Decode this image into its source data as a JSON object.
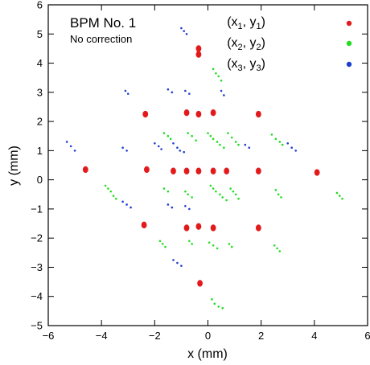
{
  "chart_data": {
    "type": "scatter",
    "title": "BPM No. 1",
    "subtitle": "No correction",
    "xlabel": "x (mm)",
    "ylabel": "y (mm)",
    "xlim": [
      -6,
      6
    ],
    "ylim": [
      -5,
      6
    ],
    "xticks": [
      -6,
      -4,
      -2,
      0,
      2,
      4,
      6
    ],
    "yticks": [
      -5,
      -4,
      -3,
      -2,
      -1,
      0,
      1,
      2,
      3,
      4,
      5,
      6
    ],
    "grid": false,
    "legend_position": "top-right",
    "legend_labels": {
      "s1": {
        "base": "(x",
        "sub1": "1",
        "mid": ", y",
        "sub2": "1",
        "end": ")"
      },
      "s2": {
        "base": "(x",
        "sub1": "2",
        "mid": ", y",
        "sub2": "2",
        "end": ")"
      },
      "s3": {
        "base": "(x",
        "sub1": "3",
        "mid": ", y",
        "sub2": "3",
        "end": ")"
      }
    },
    "series": [
      {
        "key": "s1",
        "color": "#e31a1c",
        "marker": "dot-large",
        "points": [
          [
            -0.35,
            4.5
          ],
          [
            -0.35,
            4.3
          ],
          [
            -2.35,
            2.25
          ],
          [
            -0.8,
            2.3
          ],
          [
            -0.35,
            2.25
          ],
          [
            0.2,
            2.3
          ],
          [
            1.9,
            2.25
          ],
          [
            -4.6,
            0.35
          ],
          [
            -2.3,
            0.35
          ],
          [
            -1.3,
            0.3
          ],
          [
            -0.8,
            0.3
          ],
          [
            -0.35,
            0.3
          ],
          [
            0.2,
            0.3
          ],
          [
            0.7,
            0.3
          ],
          [
            1.9,
            0.3
          ],
          [
            4.1,
            0.25
          ],
          [
            -2.4,
            -1.55
          ],
          [
            -0.8,
            -1.65
          ],
          [
            -0.35,
            -1.6
          ],
          [
            0.2,
            -1.65
          ],
          [
            1.9,
            -1.65
          ],
          [
            -0.3,
            -3.55
          ]
        ]
      },
      {
        "key": "s2",
        "color": "#22dd22",
        "marker": "dot-small",
        "points": [
          [
            0.2,
            3.8
          ],
          [
            0.3,
            3.65
          ],
          [
            0.4,
            3.55
          ],
          [
            0.5,
            3.4
          ],
          [
            -1.65,
            1.6
          ],
          [
            -1.5,
            1.5
          ],
          [
            -1.4,
            1.4
          ],
          [
            -0.75,
            1.6
          ],
          [
            -0.6,
            1.5
          ],
          [
            -0.45,
            1.35
          ],
          [
            0.0,
            1.6
          ],
          [
            0.1,
            1.5
          ],
          [
            0.2,
            1.4
          ],
          [
            0.35,
            1.3
          ],
          [
            0.45,
            1.2
          ],
          [
            0.6,
            1.1
          ],
          [
            0.75,
            1.6
          ],
          [
            0.9,
            1.45
          ],
          [
            1.05,
            1.3
          ],
          [
            1.15,
            1.2
          ],
          [
            2.4,
            1.55
          ],
          [
            2.55,
            1.4
          ],
          [
            2.7,
            1.3
          ],
          [
            2.8,
            1.2
          ],
          [
            -3.85,
            -0.2
          ],
          [
            -3.75,
            -0.3
          ],
          [
            -3.65,
            -0.4
          ],
          [
            -3.55,
            -0.55
          ],
          [
            -3.45,
            -0.65
          ],
          [
            -1.65,
            -0.3
          ],
          [
            -1.5,
            -0.4
          ],
          [
            -0.85,
            -0.4
          ],
          [
            -0.75,
            -0.5
          ],
          [
            -0.6,
            -0.6
          ],
          [
            0.1,
            -0.2
          ],
          [
            0.2,
            -0.3
          ],
          [
            0.3,
            -0.4
          ],
          [
            0.45,
            -0.5
          ],
          [
            0.55,
            -0.6
          ],
          [
            0.7,
            -0.7
          ],
          [
            0.85,
            -0.3
          ],
          [
            0.95,
            -0.4
          ],
          [
            1.05,
            -0.5
          ],
          [
            1.15,
            -0.65
          ],
          [
            2.55,
            -0.35
          ],
          [
            2.65,
            -0.5
          ],
          [
            2.75,
            -0.6
          ],
          [
            4.85,
            -0.45
          ],
          [
            4.95,
            -0.55
          ],
          [
            5.05,
            -0.65
          ],
          [
            -1.8,
            -2.1
          ],
          [
            -1.7,
            -2.2
          ],
          [
            -1.6,
            -2.3
          ],
          [
            -0.7,
            -2.1
          ],
          [
            -0.6,
            -2.2
          ],
          [
            0.05,
            -2.15
          ],
          [
            0.2,
            -2.25
          ],
          [
            0.35,
            -2.35
          ],
          [
            0.8,
            -2.2
          ],
          [
            0.9,
            -2.3
          ],
          [
            2.5,
            -2.25
          ],
          [
            2.6,
            -2.35
          ],
          [
            2.7,
            -2.45
          ],
          [
            0.15,
            -4.1
          ],
          [
            0.25,
            -4.25
          ],
          [
            0.4,
            -4.35
          ],
          [
            0.55,
            -4.4
          ]
        ]
      },
      {
        "key": "s3",
        "color": "#1f3fd0",
        "marker": "dot-small",
        "points": [
          [
            -1.0,
            5.2
          ],
          [
            -0.9,
            5.1
          ],
          [
            -0.8,
            5.0
          ],
          [
            -3.1,
            3.05
          ],
          [
            -3.0,
            2.95
          ],
          [
            -1.5,
            3.1
          ],
          [
            -1.35,
            3.0
          ],
          [
            -0.85,
            3.05
          ],
          [
            -0.7,
            2.95
          ],
          [
            0.5,
            3.05
          ],
          [
            0.6,
            2.9
          ],
          [
            -5.3,
            1.3
          ],
          [
            -5.15,
            1.15
          ],
          [
            -5.0,
            1.0
          ],
          [
            -3.2,
            1.1
          ],
          [
            -3.05,
            1.0
          ],
          [
            -2.0,
            1.25
          ],
          [
            -1.85,
            1.15
          ],
          [
            -1.75,
            1.05
          ],
          [
            -1.3,
            1.25
          ],
          [
            -1.15,
            1.1
          ],
          [
            -1.05,
            1.0
          ],
          [
            -0.9,
            0.95
          ],
          [
            1.4,
            1.2
          ],
          [
            1.55,
            1.1
          ],
          [
            3.0,
            1.25
          ],
          [
            3.15,
            1.1
          ],
          [
            3.3,
            1.0
          ],
          [
            -3.2,
            -0.75
          ],
          [
            -3.05,
            -0.85
          ],
          [
            -2.9,
            -0.95
          ],
          [
            -1.5,
            -0.85
          ],
          [
            -1.35,
            -0.95
          ],
          [
            -0.85,
            -0.9
          ],
          [
            -0.7,
            -1.0
          ],
          [
            -1.3,
            -2.75
          ],
          [
            -1.15,
            -2.85
          ],
          [
            -1.0,
            -2.95
          ]
        ]
      }
    ]
  }
}
